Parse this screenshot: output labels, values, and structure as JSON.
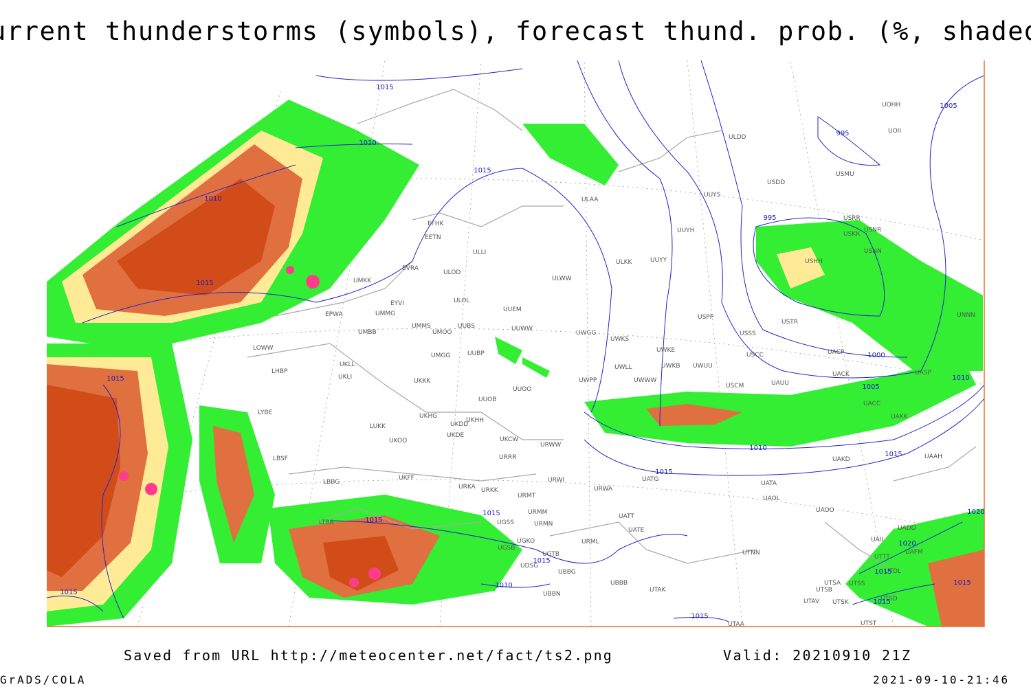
{
  "header": {
    "title": "Current thunderstorms (symbols), forecast thund. prob. (%, shaded)"
  },
  "footer": {
    "source": "Saved from URL http://meteocenter.net/fact/ts2.png",
    "valid": "Valid: 20210910 21Z",
    "software": "GrADS/COLA",
    "timestamp": "2021-09-10-21:46"
  },
  "map": {
    "stations": [
      "ULDD",
      "USDD",
      "UUYS",
      "ULAA",
      "UUYH",
      "ULKK",
      "UUYY",
      "EFHK",
      "EETN",
      "ULLI",
      "EVRA",
      "ULOD",
      "UMKK",
      "ULOL",
      "EYVI",
      "UUEM",
      "ULWW",
      "UMMG",
      "EPWA",
      "UMMS",
      "UMOO",
      "UUBS",
      "UUWW",
      "UWGG",
      "UWKS",
      "UMBB",
      "UMGG",
      "UUBP",
      "UWKE",
      "UWKB",
      "UWUU",
      "USPP",
      "USTR",
      "USSS",
      "USCC",
      "USCM",
      "LOWW",
      "UKLL",
      "UKLI",
      "LHBP",
      "UKKK",
      "UUOO",
      "UWPP",
      "UWWW",
      "UWLL",
      "UUOB",
      "LYBE",
      "UKHG",
      "UKDD",
      "UKHH",
      "LUKK",
      "UKOO",
      "UKDE",
      "UKCW",
      "URWW",
      "URRR",
      "LBSF",
      "UKFF",
      "LBBG",
      "URKA",
      "URKK",
      "URMT",
      "URWI",
      "URWA",
      "UATG",
      "UAOL",
      "UAOO",
      "UATT",
      "UATE",
      "URMM",
      "URMN",
      "URML",
      "UTNN",
      "LTBA",
      "UGSS",
      "UGKO",
      "UGSB",
      "UGTB",
      "UDSG",
      "UBBG",
      "UBBB",
      "UBBN",
      "UTAK",
      "UTAA",
      "UTSA",
      "UTSS",
      "UTSB",
      "UTAV",
      "UTSK",
      "UTST",
      "UTSD",
      "UTDL",
      "UTTT",
      "UAII",
      "UAFM",
      "UADD",
      "UACC",
      "UAKK",
      "UAKD",
      "UAAH",
      "UACK",
      "UACP",
      "UASP",
      "UAUU",
      "UATA",
      "USNR",
      "USRR",
      "USNN",
      "USHH",
      "UOII",
      "UOHH",
      "USMU",
      "USKK",
      "UNNN"
    ],
    "isobar_labels": [
      "1015",
      "1010",
      "1010",
      "1015",
      "1015",
      "995",
      "1005",
      "995",
      "1000",
      "1005",
      "1010",
      "1010",
      "1015",
      "1015",
      "1015",
      "1015",
      "1015",
      "1015",
      "1015",
      "1010",
      "1015",
      "1015",
      "1015",
      "1020",
      "1015",
      "1020"
    ]
  }
}
